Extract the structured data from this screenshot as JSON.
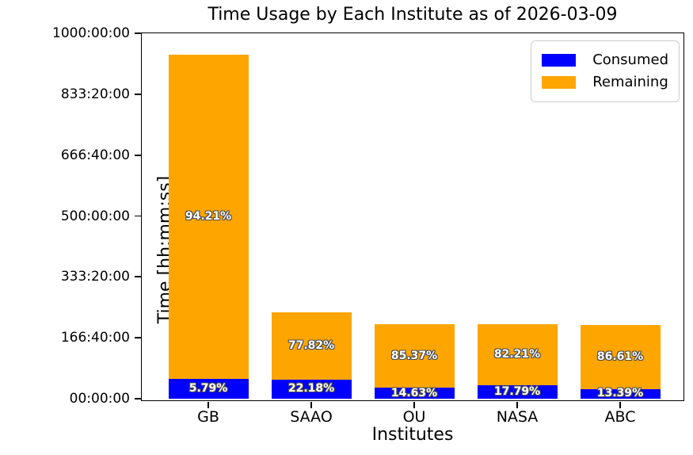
{
  "chart_data": {
    "type": "bar",
    "stacked": true,
    "title": "Time Usage by Each Institute as of 2026-03-09",
    "xlabel": "Institutes",
    "ylabel": "Time [hh:mm:ss]",
    "categories": [
      "GB",
      "SAAO",
      "OU",
      "NASA",
      "ABC"
    ],
    "series": [
      {
        "name": "Consumed",
        "color": "#0000ff",
        "values_hours": [
          54.5,
          52.5,
          29.9,
          36.3,
          27.1
        ],
        "percent_labels": [
          "5.79%",
          "22.18%",
          "14.63%",
          "17.79%",
          "13.39%"
        ]
      },
      {
        "name": "Remaining",
        "color": "#ffa500",
        "values_hours": [
          887.5,
          184.1,
          174.3,
          167.9,
          175.1
        ],
        "percent_labels": [
          "94.21%",
          "77.82%",
          "85.37%",
          "82.21%",
          "86.61%"
        ]
      }
    ],
    "totals_hours": [
      942.0,
      236.6,
      204.2,
      204.2,
      202.2
    ],
    "ylim_hours": [
      0,
      1000
    ],
    "ytick_labels_bottom_to_top": [
      "00:00:00",
      "166:40:00",
      "333:20:00",
      "500:00:00",
      "666:40:00",
      "833:20:00",
      "1000:00:00"
    ],
    "grid": false,
    "legend": {
      "position": "upper-right",
      "entries": [
        {
          "label": "Consumed",
          "color": "#0000ff"
        },
        {
          "label": "Remaining",
          "color": "#ffa500"
        }
      ]
    },
    "bar_label_text_color": "#ffffff",
    "bar_label_outline_color": "#4d4d4d",
    "axis_color": "#000000",
    "background_color": "#ffffff"
  }
}
